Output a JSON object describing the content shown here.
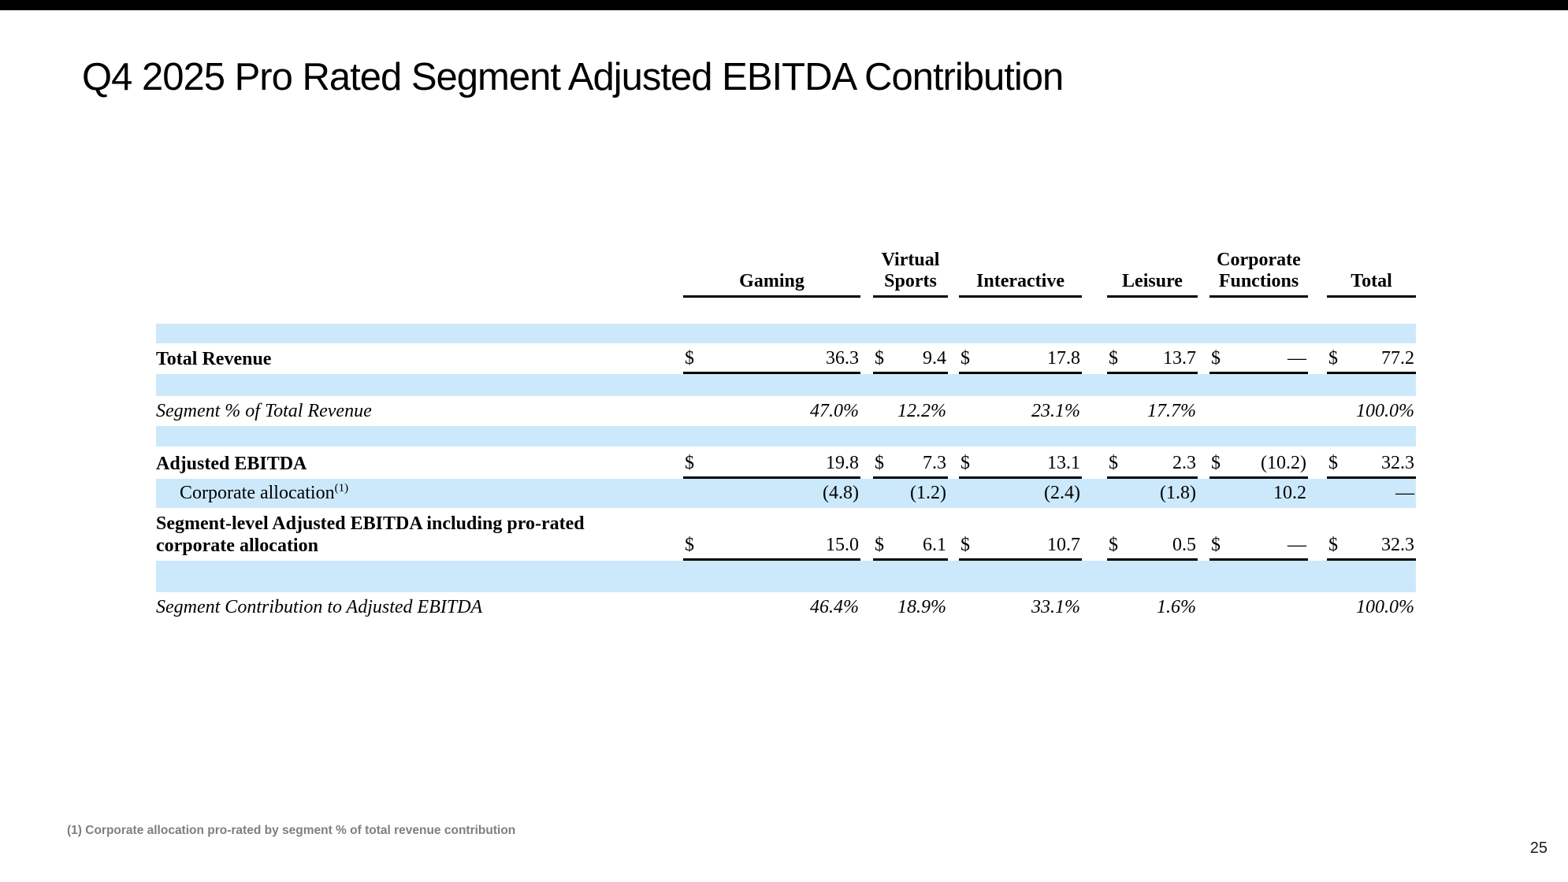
{
  "slide": {
    "title": "Q4 2025 Pro Rated Segment Adjusted EBITDA Contribution",
    "footnote": "(1) Corporate allocation pro-rated by segment % of total revenue contribution",
    "page_number": "25"
  },
  "colors": {
    "top_bar": "#000000",
    "row_stripe": "#cce9fb",
    "footnote_gray": "#7f7f7f"
  },
  "table": {
    "columns": [
      "Gaming",
      "Virtual Sports",
      "Interactive",
      "Leisure",
      "Corporate Functions",
      "Total"
    ],
    "currency_symbol": "$",
    "rows": [
      {
        "label": "Total Revenue",
        "values": [
          "36.3",
          "9.4",
          "17.8",
          "13.7",
          "—",
          "77.2"
        ]
      },
      {
        "label": "Segment % of Total Revenue",
        "values": [
          "47.0%",
          "12.2%",
          "23.1%",
          "17.7%",
          "",
          "100.0%"
        ]
      },
      {
        "label": "Adjusted EBITDA",
        "values": [
          "19.8",
          "7.3",
          "13.1",
          "2.3",
          "(10.2)",
          "32.3"
        ]
      },
      {
        "label": "Corporate allocation",
        "label_sup": "(1)",
        "values": [
          "(4.8)",
          "(1.2)",
          "(2.4)",
          "(1.8)",
          "10.2",
          "—"
        ]
      },
      {
        "label_lines": [
          "Segment-level Adjusted EBITDA including pro-rated",
          "corporate allocation"
        ],
        "values": [
          "15.0",
          "6.1",
          "10.7",
          "0.5",
          "—",
          "32.3"
        ]
      },
      {
        "label": "Segment Contribution to Adjusted EBITDA",
        "values": [
          "46.4%",
          "18.9%",
          "33.1%",
          "1.6%",
          "",
          "100.0%"
        ]
      }
    ]
  }
}
